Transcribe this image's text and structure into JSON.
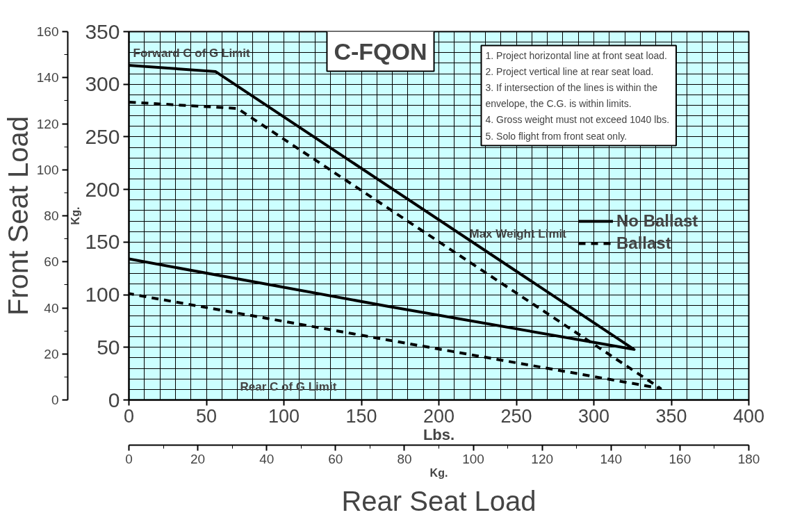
{
  "chart_data": {
    "type": "line",
    "xlabel": "Rear Seat Load",
    "ylabel": "Front Seat Load",
    "x2label": "Kg.",
    "xlim": [
      0,
      400
    ],
    "xticks": [
      0,
      50,
      100,
      150,
      200,
      250,
      300,
      350,
      400
    ],
    "ylim": [
      0,
      160
    ],
    "yticks": [
      0,
      20,
      40,
      60,
      80,
      100,
      120,
      140,
      160
    ],
    "x2lim": [
      0,
      180
    ],
    "x2ticks": [
      0,
      20,
      40,
      60,
      80,
      100,
      120,
      140,
      160,
      180
    ],
    "y2lim": [
      0,
      350
    ],
    "y2ticks": [
      0,
      50,
      100,
      150,
      200,
      250,
      300,
      350
    ],
    "grid": true,
    "legend": "right",
    "marker": "none",
    "series": [
      {
        "name": "No Ballast",
        "color": "#000000",
        "line_style": "solid",
        "axis": "y2",
        "x": [
          0,
          56,
          326,
          167,
          0
        ],
        "values": [
          318,
          312,
          48,
          89,
          134
        ]
      },
      {
        "name": "Ballast",
        "color": "#000000",
        "line_style": "dashed",
        "axis": "y2",
        "x": [
          0,
          70,
          343,
          167,
          0
        ],
        "values": [
          283,
          277,
          11,
          57,
          101
        ]
      }
    ],
    "annotations": [
      "Lbs.",
      "Kg.",
      "C-FQON",
      "1.  Project horizontal line at front seat load.",
      "2.  Project vertical line at rear seat load.",
      "3.  If intersection of the lines is within the\n     envelope, the C.G. is within limits.",
      "4.  Gross weight must not exceed 1040 lbs.",
      "5.  Solo flight from front seat only.",
      "Forward C of G Limit",
      "Max Weight Limit",
      "Rear C of G Limit"
    ]
  }
}
